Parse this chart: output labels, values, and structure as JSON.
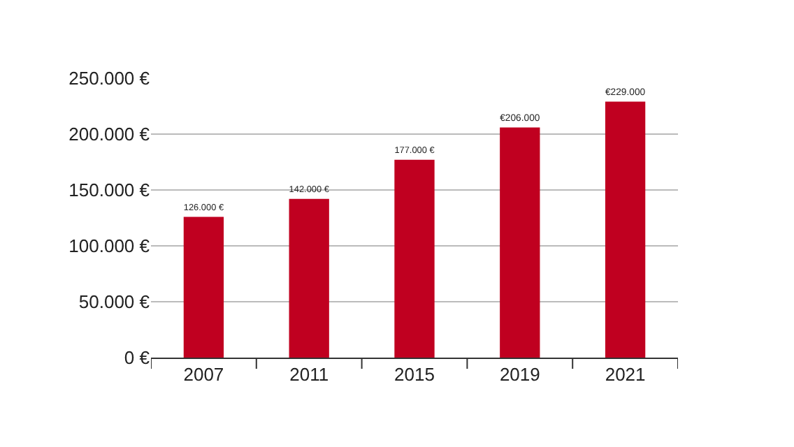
{
  "chart_data": {
    "type": "bar",
    "categories": [
      "2007",
      "2011",
      "2015",
      "2019",
      "2021"
    ],
    "values": [
      126000,
      142000,
      177000,
      206000,
      229000
    ],
    "value_labels": [
      "126.000 €",
      "142.000 €",
      "177.000 €",
      "€206.000",
      "€229.000"
    ],
    "color": "#c00020",
    "ylim": [
      0,
      250000
    ],
    "yticks": [
      {
        "value": 0,
        "label": "0 €"
      },
      {
        "value": 50000,
        "label": "50.000 €"
      },
      {
        "value": 100000,
        "label": "100.000 €"
      },
      {
        "value": 150000,
        "label": "150.000 €"
      },
      {
        "value": 200000,
        "label": "200.000 €"
      },
      {
        "value": 250000,
        "label": "250.000 €"
      }
    ],
    "grid": "y",
    "legend": false
  }
}
